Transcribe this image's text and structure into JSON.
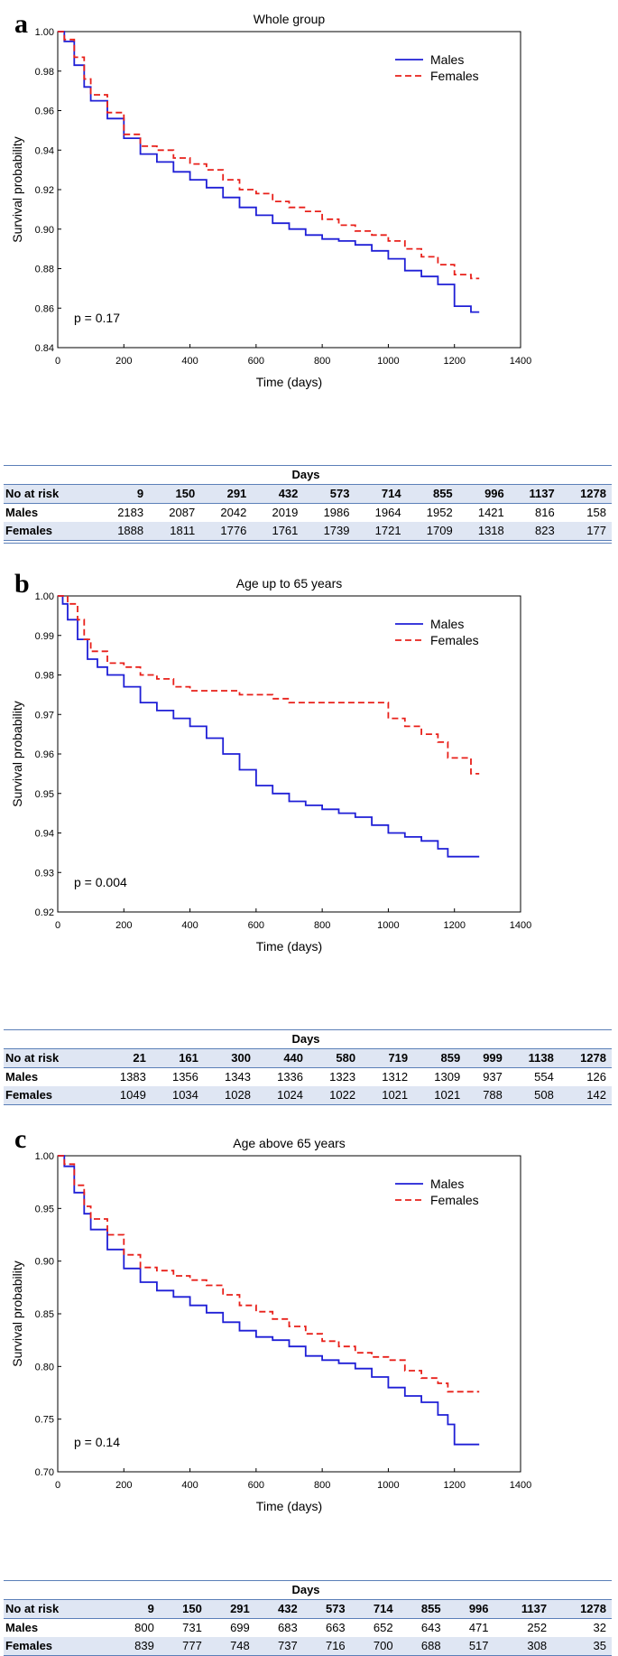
{
  "chart_data": [
    {
      "type": "line",
      "panel_letter": "a",
      "title": "Whole group",
      "xlabel": "Time (days)",
      "ylabel": "Survival probability",
      "xlim": [
        0,
        1400
      ],
      "ylim": [
        0.84,
        1.0
      ],
      "xticks": [
        0,
        200,
        400,
        600,
        800,
        1000,
        1200,
        1400
      ],
      "yticks": [
        0.84,
        0.86,
        0.88,
        0.9,
        0.92,
        0.94,
        0.96,
        0.98,
        1.0
      ],
      "ytick_labels": [
        "0.84",
        "0.86",
        "0.88",
        "0.90",
        "0.92",
        "0.94",
        "0.96",
        "0.98",
        "1.00"
      ],
      "annotation": "p = 0.17",
      "legend": "top-right",
      "series": [
        {
          "name": "Males",
          "color": "#1f1fd6",
          "dash": "solid",
          "x": [
            0,
            20,
            50,
            80,
            100,
            150,
            200,
            250,
            300,
            350,
            400,
            450,
            500,
            550,
            600,
            650,
            700,
            750,
            800,
            850,
            900,
            950,
            1000,
            1050,
            1100,
            1150,
            1200,
            1250,
            1275
          ],
          "y": [
            1.0,
            0.995,
            0.983,
            0.972,
            0.965,
            0.956,
            0.946,
            0.938,
            0.934,
            0.929,
            0.925,
            0.921,
            0.916,
            0.911,
            0.907,
            0.903,
            0.9,
            0.897,
            0.895,
            0.894,
            0.892,
            0.889,
            0.885,
            0.879,
            0.876,
            0.872,
            0.861,
            0.858,
            0.858
          ]
        },
        {
          "name": "Females",
          "color": "#e8201a",
          "dash": "dashed",
          "x": [
            0,
            20,
            50,
            80,
            100,
            150,
            200,
            250,
            300,
            350,
            400,
            450,
            500,
            550,
            600,
            650,
            700,
            750,
            800,
            850,
            900,
            950,
            1000,
            1050,
            1100,
            1150,
            1200,
            1250,
            1275
          ],
          "y": [
            1.0,
            0.996,
            0.987,
            0.976,
            0.968,
            0.959,
            0.948,
            0.942,
            0.94,
            0.936,
            0.933,
            0.93,
            0.925,
            0.92,
            0.918,
            0.914,
            0.911,
            0.909,
            0.905,
            0.902,
            0.899,
            0.897,
            0.894,
            0.89,
            0.886,
            0.882,
            0.877,
            0.875,
            0.875
          ]
        }
      ],
      "risk_table": {
        "header": "Days",
        "row_label": "No at risk",
        "times": [
          "9",
          "150",
          "291",
          "432",
          "573",
          "714",
          "855",
          "996",
          "1137",
          "1278"
        ],
        "rows": [
          {
            "label": "Males",
            "values": [
              "2183",
              "2087",
              "2042",
              "2019",
              "1986",
              "1964",
              "1952",
              "1421",
              "816",
              "158"
            ]
          },
          {
            "label": "Females",
            "values": [
              "1888",
              "1811",
              "1776",
              "1761",
              "1739",
              "1721",
              "1709",
              "1318",
              "823",
              "177"
            ]
          }
        ]
      }
    },
    {
      "type": "line",
      "panel_letter": "b",
      "title": "Age up to 65 years",
      "xlabel": "Time (days)",
      "ylabel": "Survival probability",
      "xlim": [
        0,
        1400
      ],
      "ylim": [
        0.92,
        1.0
      ],
      "xticks": [
        0,
        200,
        400,
        600,
        800,
        1000,
        1200,
        1400
      ],
      "yticks": [
        0.92,
        0.93,
        0.94,
        0.95,
        0.96,
        0.97,
        0.98,
        0.99,
        1.0
      ],
      "ytick_labels": [
        "0.92",
        "0.93",
        "0.94",
        "0.95",
        "0.96",
        "0.97",
        "0.98",
        "0.99",
        "1.00"
      ],
      "annotation": "p = 0.004",
      "legend": "top-right",
      "series": [
        {
          "name": "Males",
          "color": "#1f1fd6",
          "dash": "solid",
          "x": [
            0,
            15,
            30,
            60,
            90,
            120,
            150,
            200,
            250,
            300,
            350,
            400,
            450,
            500,
            550,
            600,
            650,
            700,
            750,
            800,
            850,
            900,
            950,
            1000,
            1050,
            1100,
            1150,
            1180,
            1200,
            1275
          ],
          "y": [
            1.0,
            0.998,
            0.994,
            0.989,
            0.984,
            0.982,
            0.98,
            0.977,
            0.973,
            0.971,
            0.969,
            0.967,
            0.964,
            0.96,
            0.956,
            0.952,
            0.95,
            0.948,
            0.947,
            0.946,
            0.945,
            0.944,
            0.942,
            0.94,
            0.939,
            0.938,
            0.936,
            0.934,
            0.934,
            0.934
          ]
        },
        {
          "name": "Females",
          "color": "#e8201a",
          "dash": "dashed",
          "x": [
            0,
            30,
            60,
            80,
            100,
            150,
            200,
            250,
            300,
            350,
            400,
            500,
            550,
            650,
            700,
            800,
            900,
            950,
            1000,
            1050,
            1100,
            1150,
            1180,
            1220,
            1250,
            1275
          ],
          "y": [
            1.0,
            0.998,
            0.994,
            0.989,
            0.986,
            0.983,
            0.982,
            0.98,
            0.979,
            0.977,
            0.976,
            0.976,
            0.975,
            0.974,
            0.973,
            0.973,
            0.973,
            0.973,
            0.969,
            0.967,
            0.965,
            0.963,
            0.959,
            0.959,
            0.955,
            0.955
          ]
        }
      ],
      "risk_table": {
        "header": "Days",
        "row_label": "No at risk",
        "times": [
          "21",
          "161",
          "300",
          "440",
          "580",
          "719",
          "859",
          "999",
          "1138",
          "1278"
        ],
        "rows": [
          {
            "label": "Males",
            "values": [
              "1383",
              "1356",
              "1343",
              "1336",
              "1323",
              "1312",
              "1309",
              "937",
              "554",
              "126"
            ]
          },
          {
            "label": "Females",
            "values": [
              "1049",
              "1034",
              "1028",
              "1024",
              "1022",
              "1021",
              "1021",
              "788",
              "508",
              "142"
            ]
          }
        ]
      }
    },
    {
      "type": "line",
      "panel_letter": "c",
      "title": "Age above 65 years",
      "xlabel": "Time (days)",
      "ylabel": "Survival probability",
      "xlim": [
        0,
        1400
      ],
      "ylim": [
        0.7,
        1.0
      ],
      "xticks": [
        0,
        200,
        400,
        600,
        800,
        1000,
        1200,
        1400
      ],
      "yticks": [
        0.7,
        0.75,
        0.8,
        0.85,
        0.9,
        0.95,
        1.0
      ],
      "ytick_labels": [
        "0.70",
        "0.75",
        "0.80",
        "0.85",
        "0.90",
        "0.95",
        "1.00"
      ],
      "annotation": "p = 0.14",
      "legend": "top-right",
      "series": [
        {
          "name": "Males",
          "color": "#1f1fd6",
          "dash": "solid",
          "x": [
            0,
            20,
            50,
            80,
            100,
            150,
            200,
            250,
            300,
            350,
            400,
            450,
            500,
            550,
            600,
            650,
            700,
            750,
            800,
            850,
            900,
            950,
            1000,
            1050,
            1100,
            1150,
            1180,
            1200,
            1275
          ],
          "y": [
            1.0,
            0.99,
            0.965,
            0.945,
            0.93,
            0.911,
            0.893,
            0.88,
            0.872,
            0.866,
            0.858,
            0.851,
            0.842,
            0.834,
            0.828,
            0.825,
            0.819,
            0.81,
            0.806,
            0.803,
            0.798,
            0.79,
            0.78,
            0.772,
            0.766,
            0.754,
            0.745,
            0.726,
            0.726
          ]
        },
        {
          "name": "Females",
          "color": "#e8201a",
          "dash": "dashed",
          "x": [
            0,
            20,
            50,
            80,
            100,
            150,
            200,
            250,
            300,
            350,
            400,
            450,
            500,
            550,
            600,
            650,
            700,
            750,
            800,
            850,
            900,
            950,
            1000,
            1050,
            1100,
            1150,
            1180,
            1200,
            1275
          ],
          "y": [
            1.0,
            0.992,
            0.972,
            0.952,
            0.94,
            0.925,
            0.906,
            0.894,
            0.891,
            0.886,
            0.882,
            0.877,
            0.868,
            0.858,
            0.852,
            0.845,
            0.838,
            0.831,
            0.824,
            0.819,
            0.813,
            0.809,
            0.806,
            0.796,
            0.789,
            0.784,
            0.776,
            0.776,
            0.776
          ]
        }
      ],
      "risk_table": {
        "header": "Days",
        "row_label": "No at risk",
        "times": [
          "9",
          "150",
          "291",
          "432",
          "573",
          "714",
          "855",
          "996",
          "1137",
          "1278"
        ],
        "rows": [
          {
            "label": "Males",
            "values": [
              "800",
              "731",
              "699",
              "683",
              "663",
              "652",
              "643",
              "471",
              "252",
              "32"
            ]
          },
          {
            "label": "Females",
            "values": [
              "839",
              "777",
              "748",
              "737",
              "716",
              "700",
              "688",
              "517",
              "308",
              "35"
            ]
          }
        ]
      }
    }
  ]
}
